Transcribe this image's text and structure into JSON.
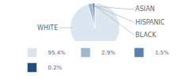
{
  "chart_data": {
    "type": "pie",
    "categories": [
      "WHITE",
      "ASIAN",
      "HISPANIC",
      "BLACK"
    ],
    "values": [
      95.4,
      2.9,
      1.5,
      0.2
    ],
    "value_labels": [
      "95.4%",
      "2.9%",
      "1.5%",
      "0.2%"
    ],
    "colors": [
      "#dce6f1",
      "#9db8d2",
      "#5b7fa6",
      "#1f4e79"
    ],
    "legend": "bottom"
  }
}
